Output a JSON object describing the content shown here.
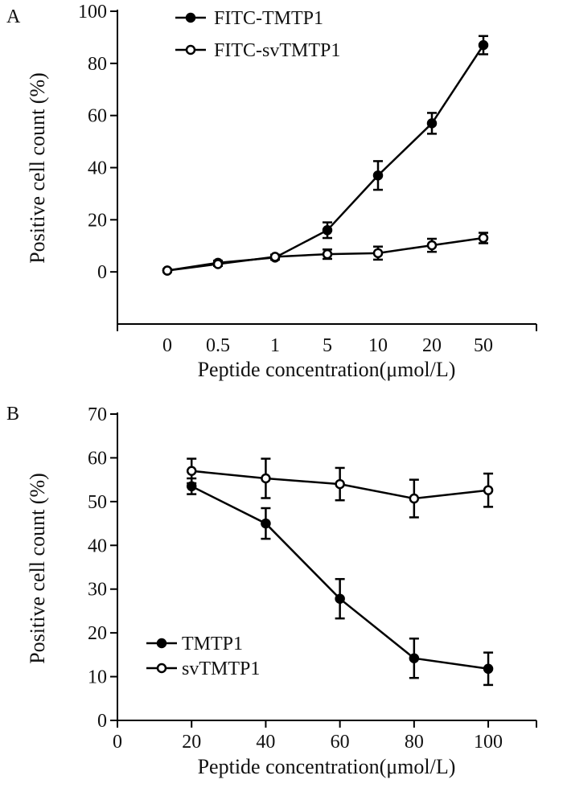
{
  "chart_data": [
    {
      "panel_label": "A",
      "type": "line",
      "categories": [
        "0",
        "0.5",
        "1",
        "5",
        "10",
        "20",
        "50"
      ],
      "xlabel": "Peptide concentration(μmol/L)",
      "ylabel": "Positive cell count (%)",
      "ylim": [
        -20,
        100
      ],
      "yticks": [
        "0",
        "20",
        "40",
        "60",
        "80",
        "100"
      ],
      "grid": false,
      "legend_position": "top-left",
      "series": [
        {
          "name": "FITC-TMTP1",
          "marker": "filled",
          "values": [
            0.5,
            3.5,
            5.5,
            16,
            37,
            57,
            87
          ],
          "errors": [
            0.5,
            0.8,
            0.8,
            3,
            5.5,
            4,
            3.5
          ]
        },
        {
          "name": "FITC-svTMTP1",
          "marker": "open",
          "values": [
            0.5,
            3,
            5.8,
            6.8,
            7.2,
            10.2,
            13
          ],
          "errors": [
            0.5,
            0.7,
            0.8,
            1.8,
            2.5,
            2.5,
            2
          ]
        }
      ]
    },
    {
      "panel_label": "B",
      "type": "line",
      "x": [
        20,
        40,
        60,
        80,
        100
      ],
      "xticks": [
        "0",
        "20",
        "40",
        "60",
        "80",
        "100"
      ],
      "xlim": [
        0,
        113
      ],
      "xlabel": "Peptide concentration(μmol/L)",
      "ylabel": "Positive cell count (%)",
      "ylim": [
        0,
        70
      ],
      "yticks": [
        "0",
        "10",
        "20",
        "30",
        "40",
        "50",
        "60",
        "70"
      ],
      "grid": false,
      "legend_position": "bottom-left",
      "series": [
        {
          "name": "TMTP1",
          "marker": "filled",
          "values": [
            53.5,
            45,
            27.8,
            14.2,
            11.8
          ],
          "errors": [
            1.8,
            3.5,
            4.5,
            4.5,
            3.7
          ]
        },
        {
          "name": "svTMTP1",
          "marker": "open",
          "values": [
            57,
            55.3,
            54,
            50.7,
            52.6
          ],
          "errors": [
            2.8,
            4.5,
            3.7,
            4.3,
            3.8
          ]
        }
      ]
    }
  ]
}
